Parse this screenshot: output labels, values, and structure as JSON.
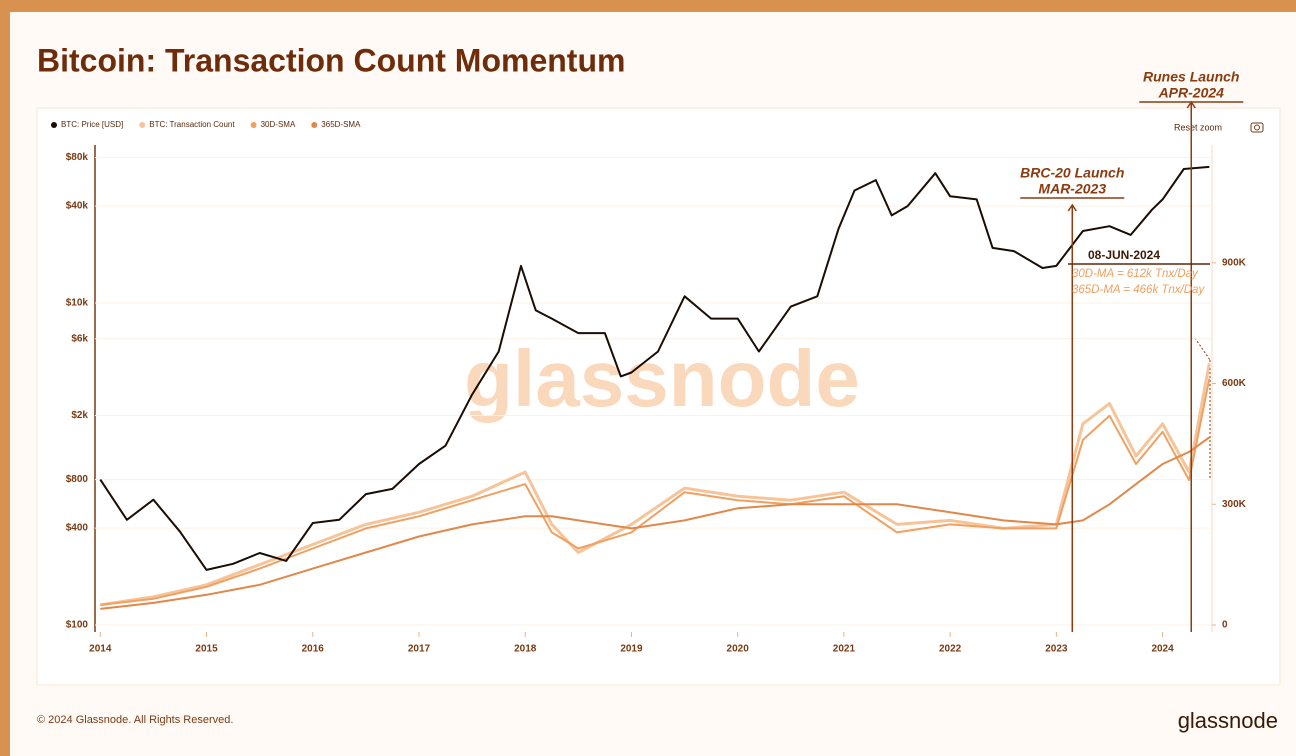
{
  "chart_data": {
    "type": "line",
    "title": "Bitcoin: Transaction Count Momentum",
    "log_scale": true,
    "xlim": [
      2013.95,
      2024.55
    ],
    "xticks": [
      2014,
      2015,
      2016,
      2017,
      2018,
      2019,
      2020,
      2021,
      2022,
      2023,
      2024
    ],
    "ylim": [
      100,
      100000
    ],
    "yticks": [
      {
        "value": 100,
        "label": "$100"
      },
      {
        "value": 400,
        "label": "$400"
      },
      {
        "value": 800,
        "label": "$800"
      },
      {
        "value": 2000,
        "label": "$2k"
      },
      {
        "value": 6000,
        "label": "$6k"
      },
      {
        "value": 10000,
        "label": "$10k"
      },
      {
        "value": 40000,
        "label": "$40k"
      },
      {
        "value": 80000,
        "label": "$80k"
      }
    ],
    "y2lim": [
      0,
      1200000
    ],
    "y2ticks": [
      0,
      {
        "value": 300000,
        "label": "300K"
      },
      {
        "value": 600000,
        "label": "600K"
      },
      {
        "value": 900000,
        "label": "900K"
      }
    ],
    "series": [
      {
        "name": "BTC: Transaction Count",
        "color": "#f7c49a",
        "axis": "y2",
        "x": [
          2014,
          2014.5,
          2015,
          2015.5,
          2016,
          2016.5,
          2017,
          2017.5,
          2018,
          2018.25,
          2018.5,
          2019,
          2019.5,
          2020,
          2020.5,
          2021,
          2021.5,
          2022,
          2022.5,
          2023,
          2023.25,
          2023.5,
          2023.75,
          2024,
          2024.25,
          2024.44
        ],
        "values": [
          50000,
          70000,
          100000,
          150000,
          200000,
          250000,
          280000,
          320000,
          380000,
          250000,
          180000,
          250000,
          340000,
          320000,
          310000,
          330000,
          250000,
          260000,
          240000,
          250000,
          500000,
          550000,
          420000,
          500000,
          380000,
          650000
        ]
      },
      {
        "name": "30D-SMA",
        "color": "#f0a060",
        "axis": "y2",
        "x": [
          2014,
          2014.5,
          2015,
          2015.5,
          2016,
          2016.5,
          2017,
          2017.5,
          2018,
          2018.25,
          2018.5,
          2019,
          2019.5,
          2020,
          2020.5,
          2021,
          2021.5,
          2022,
          2022.5,
          2023,
          2023.25,
          2023.5,
          2023.75,
          2024,
          2024.25,
          2024.44
        ],
        "values": [
          50000,
          65000,
          95000,
          140000,
          190000,
          240000,
          270000,
          310000,
          350000,
          230000,
          190000,
          230000,
          330000,
          310000,
          300000,
          320000,
          230000,
          250000,
          240000,
          240000,
          460000,
          520000,
          400000,
          480000,
          360000,
          612000
        ]
      },
      {
        "name": "365D-SMA",
        "color": "#e0884a",
        "axis": "y2",
        "x": [
          2014,
          2014.5,
          2015,
          2015.5,
          2016,
          2016.5,
          2017,
          2017.5,
          2018,
          2018.25,
          2018.5,
          2019,
          2019.5,
          2020,
          2020.5,
          2021,
          2021.5,
          2022,
          2022.5,
          2023,
          2023.25,
          2023.5,
          2023.75,
          2024,
          2024.25,
          2024.44
        ],
        "values": [
          40000,
          55000,
          75000,
          100000,
          140000,
          180000,
          220000,
          250000,
          270000,
          270000,
          260000,
          240000,
          260000,
          290000,
          300000,
          300000,
          300000,
          280000,
          260000,
          250000,
          260000,
          300000,
          350000,
          400000,
          430000,
          466000
        ]
      },
      {
        "name": "BTC: Price [USD]",
        "color": "#1a0d04",
        "axis": "y",
        "x": [
          2014.0,
          2014.25,
          2014.5,
          2014.75,
          2015.0,
          2015.25,
          2015.5,
          2015.75,
          2016.0,
          2016.25,
          2016.5,
          2016.75,
          2017.0,
          2017.25,
          2017.5,
          2017.75,
          2017.96,
          2018.1,
          2018.25,
          2018.5,
          2018.75,
          2018.9,
          2019.0,
          2019.25,
          2019.5,
          2019.75,
          2020.0,
          2020.2,
          2020.5,
          2020.75,
          2020.95,
          2021.1,
          2021.3,
          2021.45,
          2021.6,
          2021.86,
          2022.0,
          2022.25,
          2022.4,
          2022.6,
          2022.87,
          2023.0,
          2023.25,
          2023.5,
          2023.7,
          2023.9,
          2024.0,
          2024.2,
          2024.44
        ],
        "values": [
          800,
          450,
          600,
          380,
          220,
          240,
          280,
          250,
          430,
          450,
          650,
          700,
          1000,
          1300,
          2700,
          5000,
          17000,
          9000,
          8000,
          6500,
          6500,
          3500,
          3700,
          5000,
          11000,
          8000,
          8000,
          5000,
          9500,
          11000,
          29000,
          50000,
          58000,
          35000,
          40000,
          64000,
          46000,
          44000,
          22000,
          21000,
          16500,
          17000,
          28000,
          30000,
          26500,
          38000,
          44000,
          68000,
          70000
        ]
      }
    ],
    "events": [
      {
        "x": 2023.15,
        "name": "BRC-20 Launch",
        "date": "MAR-2023"
      },
      {
        "x": 2024.27,
        "name": "Runes Launch",
        "date": "APR-2024"
      }
    ],
    "annotation": {
      "date": "08-JUN-2024",
      "lines": [
        "30D-MA = 612k Tnx/Day",
        "365D-MA = 466k Tnx/Day"
      ]
    },
    "watermark": "glassnode",
    "reset_zoom": "Reset zoom",
    "footer": "© 2024 Glassnode. All Rights Reserved.",
    "logo": "glassnode"
  }
}
